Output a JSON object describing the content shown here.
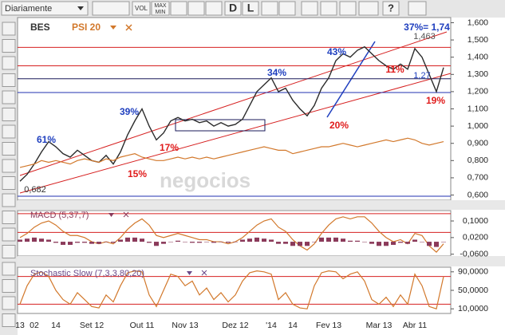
{
  "toolbar": {
    "period": "Diariamente",
    "buttons": [
      "VOL",
      "MAX",
      "MIN",
      "D",
      "L",
      "?"
    ]
  },
  "watermark": "negocios",
  "chart_data": [
    {
      "type": "line",
      "series": [
        {
          "name": "BES",
          "color": "#2b2b2b",
          "values": [
            0.68,
            0.72,
            0.78,
            0.85,
            0.91,
            0.88,
            0.84,
            0.82,
            0.86,
            0.83,
            0.8,
            0.79,
            0.83,
            0.78,
            0.85,
            0.95,
            1.03,
            1.1,
            1.0,
            0.92,
            0.96,
            1.03,
            1.05,
            1.03,
            1.04,
            1.02,
            1.03,
            1.0,
            1.02,
            1.0,
            1.01,
            1.04,
            1.12,
            1.2,
            1.24,
            1.28,
            1.2,
            1.22,
            1.15,
            1.1,
            1.06,
            1.12,
            1.22,
            1.28,
            1.38,
            1.42,
            1.4,
            1.44,
            1.46,
            1.42,
            1.38,
            1.35,
            1.33,
            1.36,
            1.33,
            1.45,
            1.4,
            1.3,
            1.2,
            1.34
          ]
        },
        {
          "name": "PSI 20",
          "color": "#d2782b",
          "values": [
            0.76,
            0.77,
            0.78,
            0.8,
            0.79,
            0.8,
            0.79,
            0.78,
            0.8,
            0.81,
            0.8,
            0.79,
            0.81,
            0.8,
            0.82,
            0.83,
            0.84,
            0.82,
            0.81,
            0.8,
            0.8,
            0.81,
            0.82,
            0.81,
            0.82,
            0.81,
            0.82,
            0.81,
            0.82,
            0.83,
            0.84,
            0.85,
            0.86,
            0.87,
            0.88,
            0.87,
            0.86,
            0.86,
            0.84,
            0.85,
            0.86,
            0.87,
            0.88,
            0.88,
            0.89,
            0.9,
            0.89,
            0.88,
            0.89,
            0.9,
            0.91,
            0.92,
            0.91,
            0.92,
            0.93,
            0.92,
            0.9,
            0.89,
            0.9,
            0.91
          ]
        }
      ],
      "ylim": [
        0.57,
        1.63
      ],
      "yticks": [
        {
          "value": 1.6,
          "label": "1,600"
        },
        {
          "value": 1.5,
          "label": "1,500"
        },
        {
          "value": 1.4,
          "label": "1,400"
        },
        {
          "value": 1.3,
          "label": "1,300"
        },
        {
          "value": 1.2,
          "label": "1,200"
        },
        {
          "value": 1.1,
          "label": "1,100"
        },
        {
          "value": 1.0,
          "label": "1,000"
        },
        {
          "value": 0.9,
          "label": "0,900"
        },
        {
          "value": 0.8,
          "label": "0,800"
        },
        {
          "value": 0.7,
          "label": "0,700"
        },
        {
          "value": 0.6,
          "label": "0,600"
        }
      ],
      "levels": [
        {
          "value": 1.457,
          "color": "#d62020"
        },
        {
          "value": 1.35,
          "color": "#d62020"
        },
        {
          "value": 1.275,
          "color": "#1a1a5a"
        },
        {
          "value": 1.195,
          "color": "#2030b0"
        }
      ],
      "annotations": [
        {
          "text": "61%",
          "color": "#1f3fbf"
        },
        {
          "text": "15%",
          "color": "#e01b1b"
        },
        {
          "text": "39%",
          "color": "#1f3fbf"
        },
        {
          "text": "17%",
          "color": "#e01b1b"
        },
        {
          "text": "34%",
          "color": "#1f3fbf"
        },
        {
          "text": "20%",
          "color": "#e01b1b"
        },
        {
          "text": "43%",
          "color": "#1f3fbf"
        },
        {
          "text": "11%",
          "color": "#e01b1b"
        },
        {
          "text": "19%",
          "color": "#e01b1b"
        },
        {
          "text": "37%= 1,74",
          "color": "#1f3fbf"
        },
        {
          "text": "1,463",
          "color": "#555555"
        },
        {
          "text": "1,27",
          "color": "#1f3fbf"
        },
        {
          "text": "0,682",
          "color": "#333333"
        }
      ]
    },
    {
      "type": "line",
      "title": "MACD (5,37,7)",
      "series": [
        {
          "color": "#d2782b",
          "values": [
            0.02,
            0.04,
            0.07,
            0.09,
            0.1,
            0.08,
            0.05,
            0.03,
            0.03,
            0.02,
            0.0,
            -0.01,
            0.0,
            -0.01,
            0.02,
            0.06,
            0.09,
            0.11,
            0.08,
            0.03,
            0.02,
            0.03,
            0.04,
            0.03,
            0.02,
            0.01,
            0.01,
            0.0,
            0.0,
            -0.01,
            0.0,
            0.02,
            0.05,
            0.08,
            0.1,
            0.11,
            0.07,
            0.05,
            0.01,
            -0.02,
            -0.04,
            -0.01,
            0.04,
            0.08,
            0.11,
            0.12,
            0.11,
            0.12,
            0.12,
            0.09,
            0.05,
            0.02,
            0.0,
            0.01,
            -0.01,
            0.04,
            0.03,
            -0.02,
            -0.05,
            -0.01
          ]
        },
        {
          "type": "bar",
          "color": "#8b3a5a",
          "values": [
            0.01,
            0.015,
            0.02,
            0.015,
            0.01,
            -0.005,
            -0.015,
            -0.015,
            -0.005,
            -0.005,
            -0.01,
            -0.01,
            0,
            -0.005,
            0.01,
            0.02,
            0.02,
            0.015,
            -0.005,
            -0.02,
            -0.01,
            0,
            0.005,
            0,
            -0.005,
            -0.005,
            0,
            -0.005,
            0,
            -0.005,
            0,
            0.01,
            0.015,
            0.02,
            0.015,
            0.01,
            -0.01,
            -0.01,
            -0.02,
            -0.02,
            -0.02,
            0,
            0.02,
            0.02,
            0.02,
            0.015,
            0.005,
            0.005,
            0,
            -0.01,
            -0.02,
            -0.02,
            -0.015,
            -0.005,
            -0.01,
            0.01,
            0,
            -0.02,
            -0.025,
            0
          ]
        }
      ],
      "ylim": [
        -0.065,
        0.15
      ],
      "yticks": [
        {
          "value": 0.1,
          "label": "0,1000"
        },
        {
          "value": 0.02,
          "label": "0,0200"
        },
        {
          "value": -0.06,
          "label": "-0,0600"
        }
      ],
      "levels": [
        {
          "value": 0.135,
          "color": "#d62020"
        },
        {
          "value": 0.045,
          "color": "#d62020"
        }
      ]
    },
    {
      "type": "line",
      "title": "Stochastic Slow (7,3,3,80,20)",
      "categories": [
        "13",
        null,
        "02",
        null,
        null,
        "14",
        null,
        null,
        null,
        null,
        "Set 12",
        null,
        null,
        null,
        null,
        null,
        null,
        "Out 11",
        null,
        null,
        null,
        null,
        null,
        "Nov 13",
        null,
        null,
        null,
        null,
        null,
        null,
        "Dez 12",
        null,
        null,
        null,
        null,
        "'14",
        null,
        null,
        "14",
        null,
        null,
        null,
        null,
        "Fev 13",
        null,
        null,
        null,
        null,
        null,
        null,
        "Mar 13",
        null,
        null,
        null,
        null,
        "Abr 11",
        null,
        null,
        null,
        null
      ],
      "series": [
        {
          "color": "#d2782b",
          "values": [
            20,
            60,
            85,
            90,
            80,
            50,
            30,
            20,
            45,
            30,
            15,
            12,
            40,
            25,
            60,
            88,
            92,
            90,
            40,
            15,
            50,
            85,
            80,
            60,
            70,
            40,
            55,
            30,
            45,
            25,
            40,
            70,
            88,
            92,
            90,
            85,
            30,
            45,
            20,
            12,
            10,
            60,
            88,
            92,
            90,
            75,
            85,
            90,
            70,
            30,
            20,
            35,
            15,
            40,
            20,
            85,
            60,
            15,
            10,
            80
          ]
        }
      ],
      "ylim": [
        0,
        100
      ],
      "yticks": [
        {
          "value": 90,
          "label": "90,0000"
        },
        {
          "value": 50,
          "label": "50,0000"
        },
        {
          "value": 10,
          "label": "10,0000"
        }
      ],
      "levels": [
        {
          "value": 80,
          "color": "#d62020"
        },
        {
          "value": 20,
          "color": "#d62020"
        }
      ]
    }
  ]
}
